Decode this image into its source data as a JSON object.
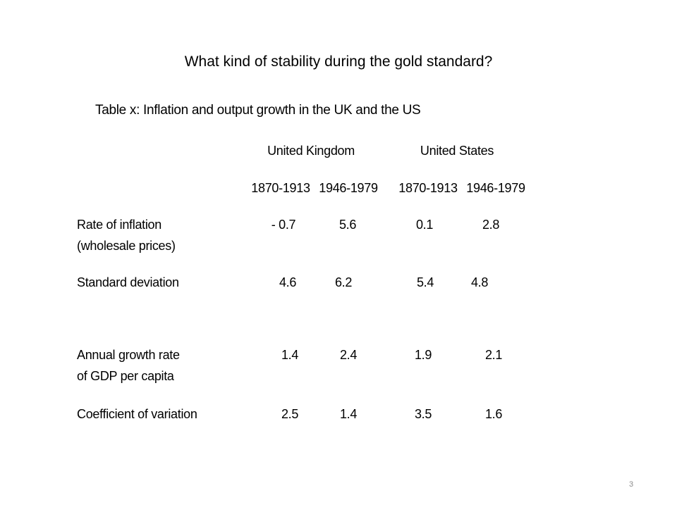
{
  "slide": {
    "title": "What kind of stability during the gold standard?",
    "page_number": "3"
  },
  "table": {
    "caption": "Table x: Inflation and output growth in the UK and the US",
    "country_headers": [
      "United Kingdom",
      "United States"
    ],
    "period_headers": [
      "1870-1913",
      "1946-1979",
      "1870-1913",
      "1946-1979"
    ],
    "rows": [
      {
        "label": [
          "Rate of inflation",
          "(wholesale prices)"
        ],
        "values": [
          "- 0.7",
          "5.6",
          "0.1",
          "2.8"
        ]
      },
      {
        "label": [
          "Standard deviation"
        ],
        "values": [
          "4.6",
          "6.2",
          "5.4",
          "4.8"
        ]
      },
      {
        "label": [
          "Annual growth rate",
          "of GDP per capita"
        ],
        "values": [
          "1.4",
          "2.4",
          "1.9",
          "2.1"
        ]
      },
      {
        "label": [
          "Coefficient of variation"
        ],
        "values": [
          "2.5",
          "1.4",
          "3.5",
          "1.6"
        ]
      }
    ]
  }
}
